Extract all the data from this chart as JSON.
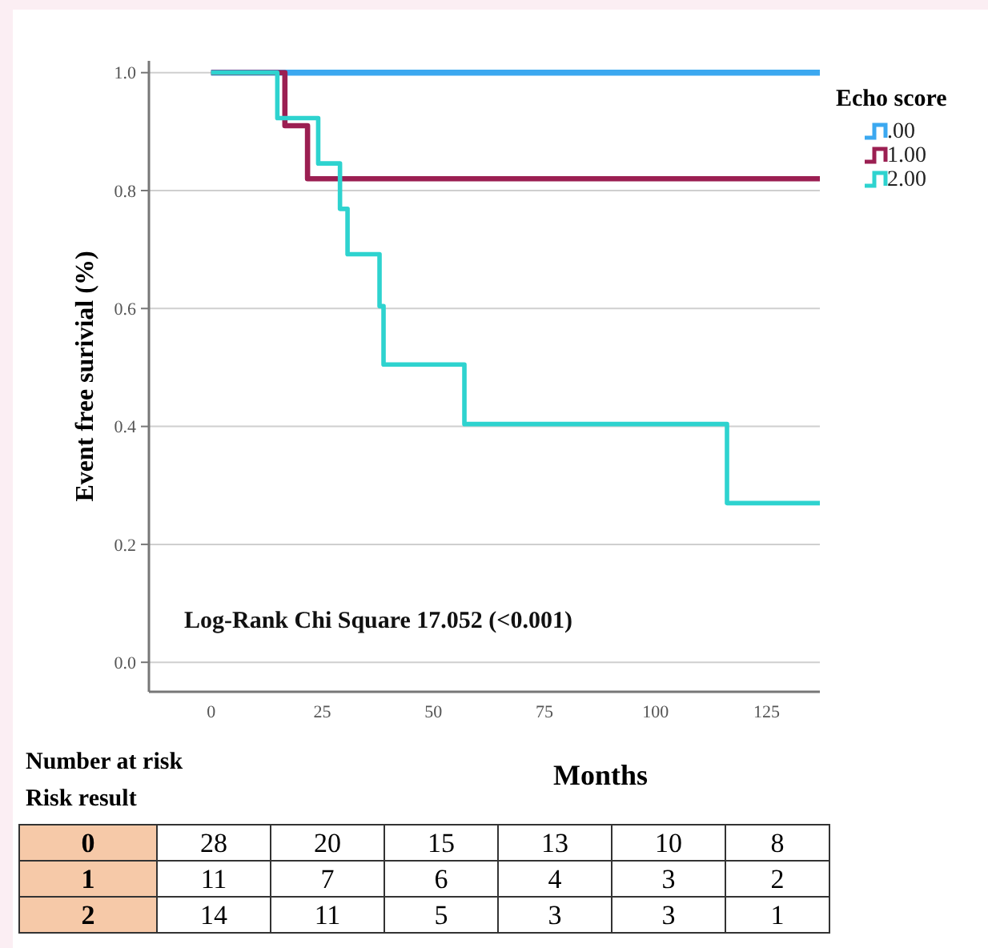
{
  "chart_data": {
    "type": "step",
    "ylabel": "Event free surivial (%)",
    "xlabel": "Months",
    "legend_title": "Echo score",
    "legend": "top right",
    "grid": "y",
    "xlim": [
      -14,
      137
    ],
    "xticks": [
      0,
      25,
      50,
      75,
      100,
      125
    ],
    "ylim": [
      -0.05,
      1.02
    ],
    "yticks": [
      {
        "value": 0,
        "label": "0.0"
      },
      {
        "value": 0.2,
        "label": "0.2"
      },
      {
        "value": 0.4,
        "label": "0.4"
      },
      {
        "value": 0.6,
        "label": "0.6"
      },
      {
        "value": 0.8,
        "label": "0.8"
      },
      {
        "value": 1,
        "label": "1.0"
      }
    ],
    "series": [
      {
        "name": ".00",
        "color": "#3ba8f0",
        "x": [
          0,
          137
        ],
        "values": [
          1,
          1
        ]
      },
      {
        "name": "1.00",
        "color": "#9b1f52",
        "x": [
          0,
          16.6,
          21.7,
          137
        ],
        "values": [
          1,
          0.91,
          0.82,
          0.82
        ]
      },
      {
        "name": "2.00",
        "color": "#2ed3cf",
        "x": [
          0,
          14.9,
          24.1,
          29,
          30.7,
          37.9,
          38.8,
          57,
          116.1,
          137
        ],
        "values": [
          1,
          0.923,
          0.846,
          0.769,
          0.692,
          0.604,
          0.505,
          0.404,
          0.27,
          0.27
        ]
      }
    ],
    "annotations": [
      "Log-Rank Chi Square 17.052 (<0.001)",
      "Number at risk",
      "Risk result",
      "0",
      "28",
      "20",
      "15",
      "13",
      "10",
      "8",
      "1",
      "11",
      "7",
      "6",
      "4",
      "3",
      "2",
      "2",
      "14",
      "11",
      "5",
      "3",
      "3",
      "1"
    ]
  }
}
